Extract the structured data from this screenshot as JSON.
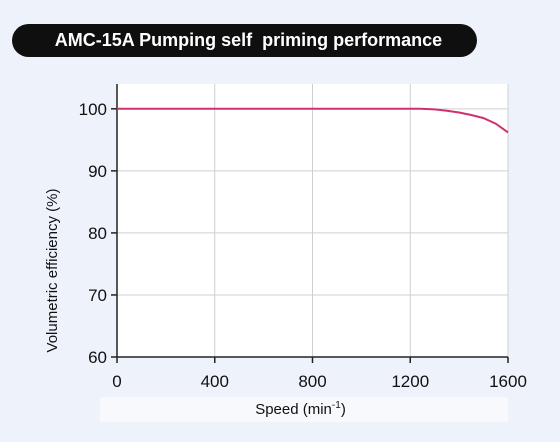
{
  "chart_data": {
    "type": "line",
    "title": "AMC-15A Pumping self  priming performance",
    "xlabel": "Speed (min",
    "xlabel_superscript": "-1",
    "xlabel_suffix": ")",
    "ylabel": "Volumetric efficiency (%)",
    "xlim": [
      0,
      1600
    ],
    "ylim": [
      60,
      104
    ],
    "xticks": [
      0,
      400,
      800,
      1200,
      1600
    ],
    "yticks": [
      60,
      70,
      80,
      90,
      100
    ],
    "grid": true,
    "line_color": "#d0306f",
    "series": [
      {
        "x": [
          0,
          400,
          800,
          1200,
          1240,
          1300,
          1350,
          1400,
          1450,
          1500,
          1550,
          1600
        ],
        "y": [
          100,
          100,
          100,
          100,
          100,
          99.9,
          99.7,
          99.4,
          99.0,
          98.5,
          97.6,
          96.2
        ]
      }
    ]
  },
  "colors": {
    "background": "#eef3fb",
    "plot_background": "#ffffff",
    "title_background": "#0f0f0f",
    "title_text": "#ffffff"
  }
}
